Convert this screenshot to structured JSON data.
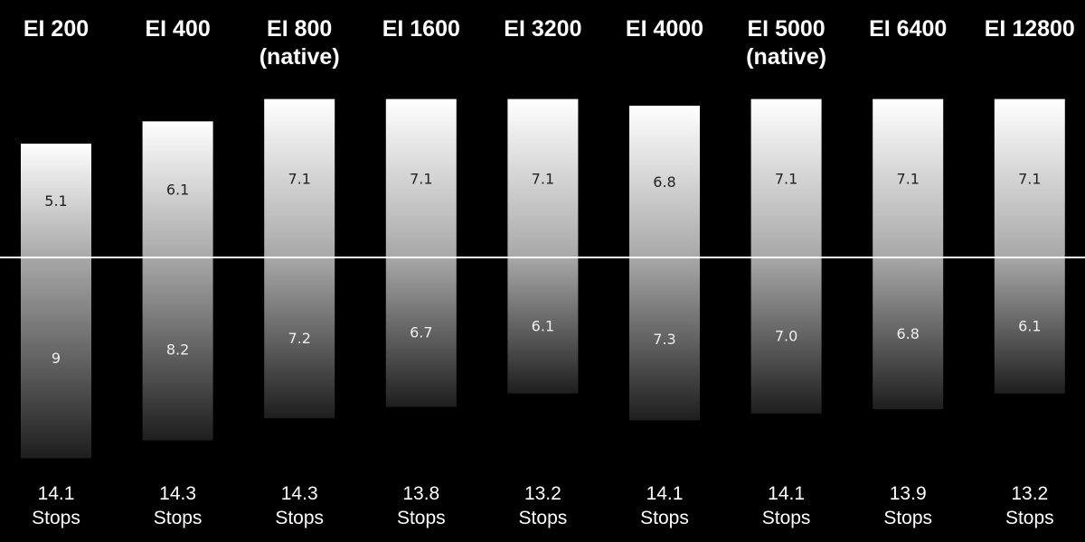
{
  "chart_data": {
    "type": "bar",
    "categories": [
      [
        "EI 200"
      ],
      [
        "EI 400"
      ],
      [
        "EI 800",
        "(native)"
      ],
      [
        "EI 1600"
      ],
      [
        "EI 3200"
      ],
      [
        "EI 4000"
      ],
      [
        "EI 5000",
        "(native)"
      ],
      [
        "EI 6400"
      ],
      [
        "EI 12800"
      ]
    ],
    "series": [
      {
        "values": [
          5.1,
          6.1,
          7.1,
          7.1,
          7.1,
          6.8,
          7.1,
          7.1,
          7.1
        ]
      },
      {
        "values": [
          9,
          8.2,
          7.2,
          6.7,
          6.1,
          7.3,
          7.0,
          6.8,
          6.1
        ]
      }
    ],
    "value_labels": {
      "above": [
        "5.1",
        "6.1",
        "7.1",
        "7.1",
        "7.1",
        "6.8",
        "7.1",
        "7.1",
        "7.1"
      ],
      "below": [
        "9",
        "8.2",
        "7.2",
        "6.7",
        "6.1",
        "7.3",
        "7.0",
        "6.8",
        "6.1"
      ]
    },
    "totals": [
      "14.1",
      "14.3",
      "14.3",
      "13.8",
      "13.2",
      "14.1",
      "14.1",
      "13.9",
      "13.2"
    ],
    "total_unit": "Stops",
    "baseline": 0,
    "stacked": "diverging",
    "grid": false,
    "legend": "none",
    "colors": {
      "background": "#000000",
      "baseline": "#ffffff",
      "bar_top": "#ffffff",
      "bar_mid": "#a8a8a8",
      "bar_bottom": "#1e1e1e",
      "text": "#ffffff"
    }
  }
}
